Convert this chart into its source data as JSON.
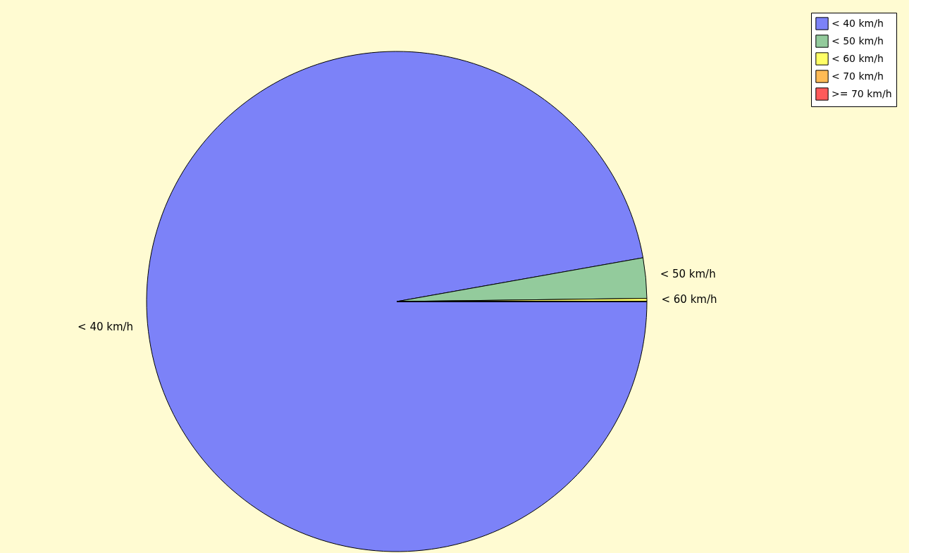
{
  "chart_data": {
    "type": "pie",
    "categories": [
      "< 40 km/h",
      "< 50 km/h",
      "< 60 km/h",
      "< 70 km/h",
      ">= 70 km/h"
    ],
    "values": [
      97.2,
      2.6,
      0.2,
      0,
      0
    ],
    "colors": [
      "#7c82f8",
      "#93cb9c",
      "#ffff66",
      "#ffbb55",
      "#ff5a5a"
    ],
    "legend": "top right"
  }
}
